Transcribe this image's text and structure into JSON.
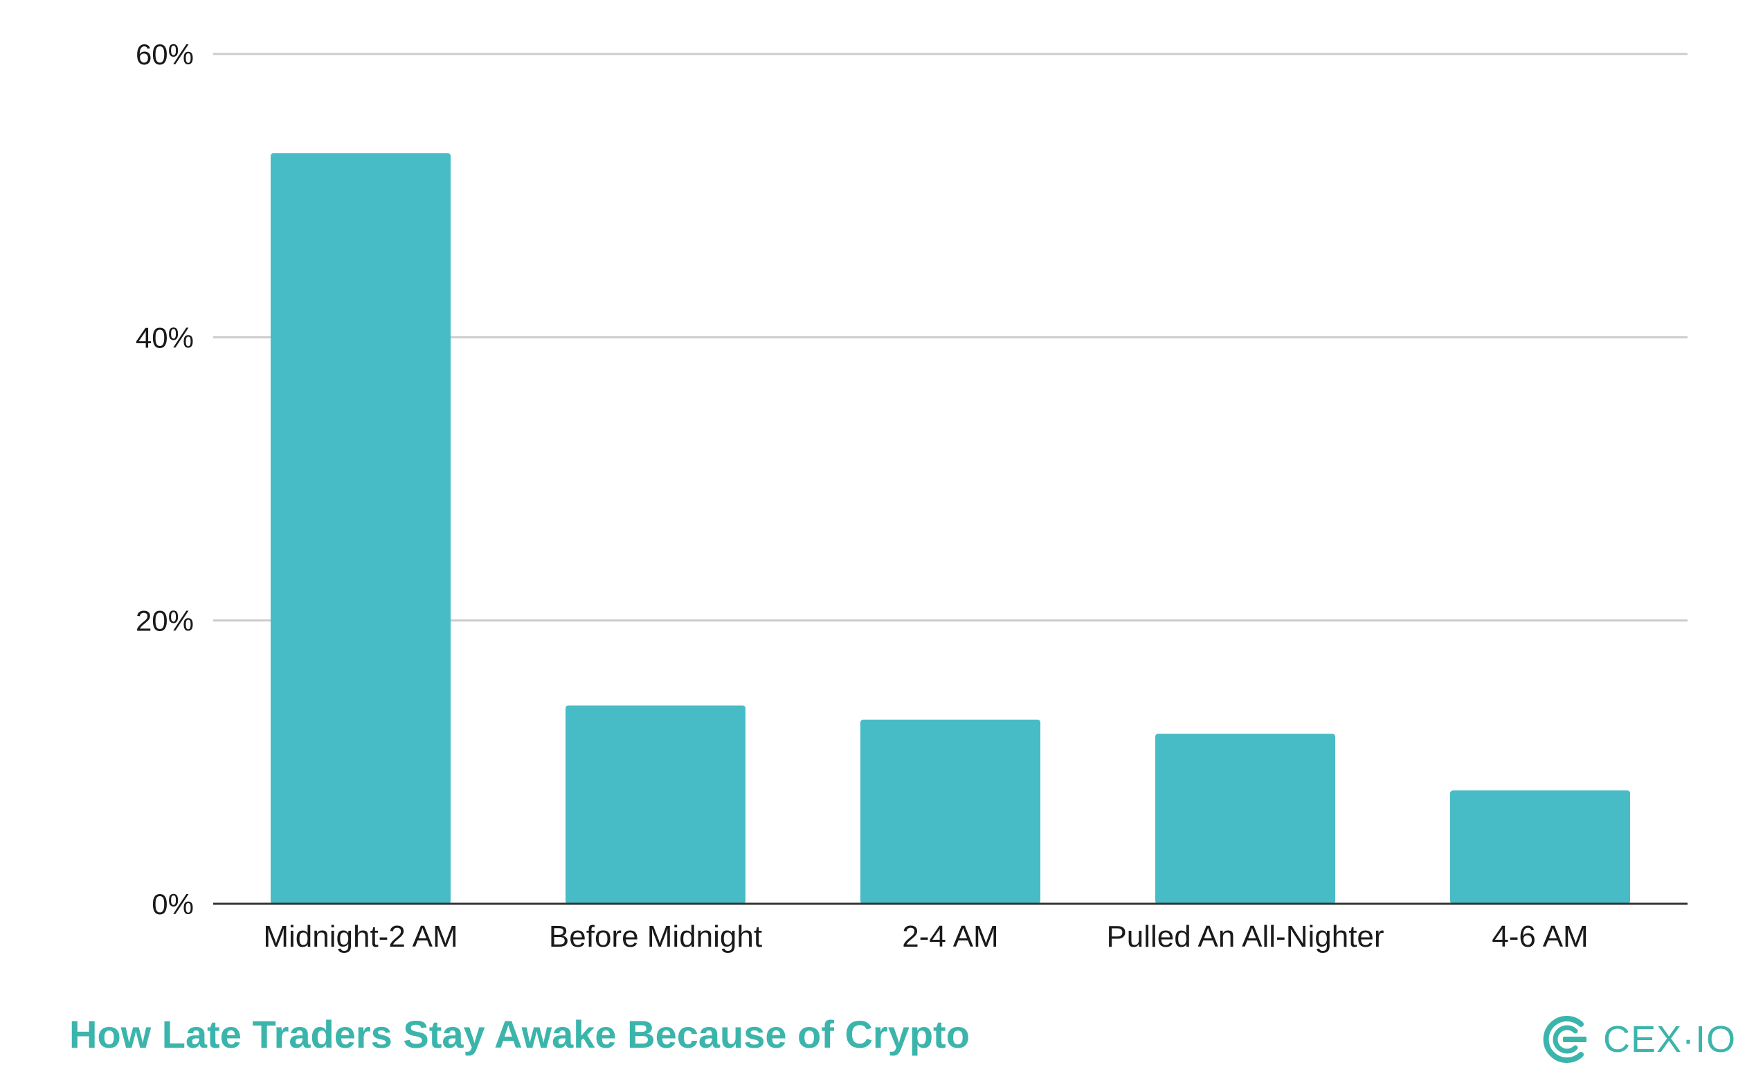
{
  "chart_data": {
    "type": "bar",
    "title": "How Late Traders Stay Awake Because of Crypto",
    "categories": [
      "Midnight-2 AM",
      "Before Midnight",
      "2-4 AM",
      "Pulled An All-Nighter",
      "4-6 AM"
    ],
    "values": [
      53,
      14,
      13,
      12,
      8
    ],
    "value_unit": "%",
    "ylim": [
      0,
      60
    ],
    "yticks": [
      0,
      20,
      40,
      60
    ],
    "ytick_labels": [
      "0%",
      "20%",
      "40%",
      "60%"
    ],
    "xlabel": "",
    "ylabel": "",
    "grid": true,
    "legend": "none",
    "bar_color": "#47bcc6"
  },
  "footer": {
    "title": "How Late Traders Stay Awake Because of Crypto",
    "title_color": "#3bb5ab"
  },
  "brand": {
    "name": "CEX·IO",
    "logo_icon": "cex-io-logo-icon",
    "color": "#3bb5ab"
  }
}
